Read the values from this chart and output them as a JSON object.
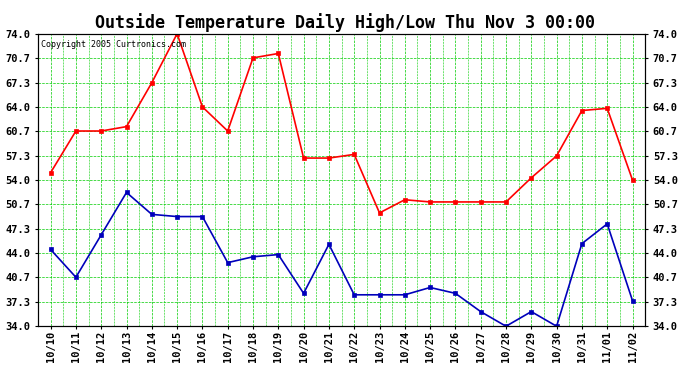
{
  "title": "Outside Temperature Daily High/Low Thu Nov 3 00:00",
  "copyright": "Copyright 2005 Curtronics.com",
  "x_labels": [
    "10/10",
    "10/11",
    "10/12",
    "10/13",
    "10/14",
    "10/15",
    "10/16",
    "10/17",
    "10/18",
    "10/19",
    "10/20",
    "10/21",
    "10/22",
    "10/23",
    "10/24",
    "10/25",
    "10/26",
    "10/27",
    "10/28",
    "10/29",
    "10/30",
    "10/31",
    "11/01",
    "11/02"
  ],
  "high_temps": [
    55.0,
    60.7,
    60.7,
    61.3,
    67.3,
    74.0,
    64.0,
    60.7,
    70.7,
    71.3,
    57.0,
    57.0,
    57.5,
    49.5,
    51.3,
    51.0,
    51.0,
    51.0,
    51.0,
    54.3,
    57.3,
    63.5,
    63.8,
    54.0
  ],
  "low_temps": [
    44.5,
    40.7,
    46.5,
    52.3,
    49.3,
    49.0,
    49.0,
    42.7,
    43.5,
    43.8,
    38.5,
    45.2,
    38.3,
    38.3,
    38.3,
    39.3,
    38.5,
    36.0,
    34.0,
    36.0,
    34.0,
    45.3,
    48.0,
    37.5
  ],
  "high_color": "#ff0000",
  "low_color": "#0000bb",
  "bg_color": "#ffffff",
  "plot_bg_color": "#ffffff",
  "grid_color": "#00cc00",
  "grid_dash_color": "#008800",
  "y_ticks": [
    34.0,
    37.3,
    40.7,
    44.0,
    47.3,
    50.7,
    54.0,
    57.3,
    60.7,
    64.0,
    67.3,
    70.7,
    74.0
  ],
  "y_min": 34.0,
  "y_max": 74.0,
  "title_fontsize": 12,
  "axis_fontsize": 7.5,
  "marker": "s",
  "marker_size": 3,
  "line_width": 1.2
}
